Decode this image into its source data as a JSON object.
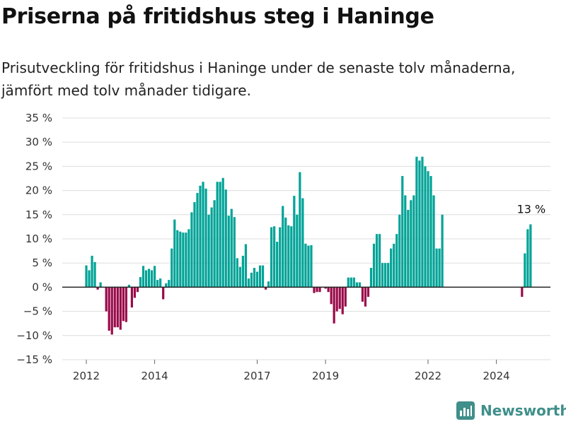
{
  "title": "Priserna på fritidshus steg i Haninge",
  "subtitle": "Prisutveckling för fritidshus i Haninge under de senaste tolv månaderna, jämfört med tolv månader tidigare.",
  "brand": "Newsworthy",
  "colors": {
    "positive": "#00a397",
    "negative": "#990b4a",
    "grid": "#dddddd",
    "axis": "#222222",
    "brand": "#3f8f8a"
  },
  "chart_data": {
    "type": "bar",
    "ylim": [
      -15,
      35
    ],
    "y_ticks": [
      35,
      30,
      25,
      20,
      15,
      10,
      5,
      0,
      -5,
      -10,
      -15
    ],
    "y_tick_labels": [
      "35 %",
      "30 %",
      "25 %",
      "20 %",
      "15 %",
      "10 %",
      "5 %",
      "0 %",
      "−5 %",
      "−10 %",
      "−15 %"
    ],
    "x_ticks": [
      {
        "label": "2012",
        "x": "2012-01"
      },
      {
        "label": "2014",
        "x": "2014-01"
      },
      {
        "label": "2017",
        "x": "2017-01"
      },
      {
        "label": "2019",
        "x": "2019-01"
      },
      {
        "label": "2022",
        "x": "2022-01"
      },
      {
        "label": "2024",
        "x": "2024-01"
      }
    ],
    "annotation": {
      "label": "13 %",
      "x": "2025-01",
      "y": 13
    },
    "series": [
      {
        "values": [
          {
            "x": "2012-01",
            "y": 4.5
          },
          {
            "x": "2012-02",
            "y": 3.5
          },
          {
            "x": "2012-03",
            "y": 6.5
          },
          {
            "x": "2012-04",
            "y": 5.2
          },
          {
            "x": "2012-05",
            "y": -0.5
          },
          {
            "x": "2012-06",
            "y": 1
          },
          {
            "x": "2012-07",
            "y": 0
          },
          {
            "x": "2012-08",
            "y": -5
          },
          {
            "x": "2012-09",
            "y": -9
          },
          {
            "x": "2012-10",
            "y": -9.8
          },
          {
            "x": "2012-11",
            "y": -8.3
          },
          {
            "x": "2012-12",
            "y": -8.3
          },
          {
            "x": "2013-01",
            "y": -8.8
          },
          {
            "x": "2013-02",
            "y": -7
          },
          {
            "x": "2013-03",
            "y": -7.2
          },
          {
            "x": "2013-04",
            "y": 0.5
          },
          {
            "x": "2013-05",
            "y": -4.2
          },
          {
            "x": "2013-06",
            "y": -2.2
          },
          {
            "x": "2013-07",
            "y": -1
          },
          {
            "x": "2013-08",
            "y": 2.1
          },
          {
            "x": "2013-09",
            "y": 4.4
          },
          {
            "x": "2013-10",
            "y": 3.5
          },
          {
            "x": "2013-11",
            "y": 3.8
          },
          {
            "x": "2013-12",
            "y": 3.5
          },
          {
            "x": "2014-01",
            "y": 4.4
          },
          {
            "x": "2014-02",
            "y": 1.5
          },
          {
            "x": "2014-03",
            "y": 1.8
          },
          {
            "x": "2014-04",
            "y": -2.5
          },
          {
            "x": "2014-05",
            "y": 0.8
          },
          {
            "x": "2014-06",
            "y": 1.5
          },
          {
            "x": "2014-07",
            "y": 8
          },
          {
            "x": "2014-08",
            "y": 14
          },
          {
            "x": "2014-09",
            "y": 11.8
          },
          {
            "x": "2014-10",
            "y": 11.5
          },
          {
            "x": "2014-11",
            "y": 11.3
          },
          {
            "x": "2014-12",
            "y": 11.3
          },
          {
            "x": "2015-01",
            "y": 12
          },
          {
            "x": "2015-02",
            "y": 15.5
          },
          {
            "x": "2015-03",
            "y": 17.6
          },
          {
            "x": "2015-04",
            "y": 19.5
          },
          {
            "x": "2015-05",
            "y": 21
          },
          {
            "x": "2015-06",
            "y": 21.8
          },
          {
            "x": "2015-07",
            "y": 20.4
          },
          {
            "x": "2015-08",
            "y": 15
          },
          {
            "x": "2015-09",
            "y": 16.5
          },
          {
            "x": "2015-10",
            "y": 18
          },
          {
            "x": "2015-11",
            "y": 21.8
          },
          {
            "x": "2015-12",
            "y": 21.8
          },
          {
            "x": "2016-01",
            "y": 22.6
          },
          {
            "x": "2016-02",
            "y": 20.2
          },
          {
            "x": "2016-03",
            "y": 14.8
          },
          {
            "x": "2016-04",
            "y": 16.2
          },
          {
            "x": "2016-05",
            "y": 14.5
          },
          {
            "x": "2016-06",
            "y": 6
          },
          {
            "x": "2016-07",
            "y": 4.2
          },
          {
            "x": "2016-08",
            "y": 6.5
          },
          {
            "x": "2016-09",
            "y": 8.9
          },
          {
            "x": "2016-10",
            "y": 1.8
          },
          {
            "x": "2016-11",
            "y": 3
          },
          {
            "x": "2016-12",
            "y": 4
          },
          {
            "x": "2017-01",
            "y": 3.2
          },
          {
            "x": "2017-02",
            "y": 4.5
          },
          {
            "x": "2017-03",
            "y": 4.5
          },
          {
            "x": "2017-04",
            "y": -0.5
          },
          {
            "x": "2017-05",
            "y": 1.2
          },
          {
            "x": "2017-06",
            "y": 12.4
          },
          {
            "x": "2017-07",
            "y": 12.6
          },
          {
            "x": "2017-08",
            "y": 9.4
          },
          {
            "x": "2017-09",
            "y": 12.4
          },
          {
            "x": "2017-10",
            "y": 16.8
          },
          {
            "x": "2017-11",
            "y": 14.4
          },
          {
            "x": "2017-12",
            "y": 12.8
          },
          {
            "x": "2018-01",
            "y": 12.6
          },
          {
            "x": "2018-02",
            "y": 18.9
          },
          {
            "x": "2018-03",
            "y": 15
          },
          {
            "x": "2018-04",
            "y": 23.8
          },
          {
            "x": "2018-05",
            "y": 18.4
          },
          {
            "x": "2018-06",
            "y": 9
          },
          {
            "x": "2018-07",
            "y": 8.6
          },
          {
            "x": "2018-08",
            "y": 8.7
          },
          {
            "x": "2018-09",
            "y": -1.2
          },
          {
            "x": "2018-10",
            "y": -1
          },
          {
            "x": "2018-11",
            "y": -1
          },
          {
            "x": "2018-12",
            "y": 0
          },
          {
            "x": "2019-01",
            "y": -0.3
          },
          {
            "x": "2019-02",
            "y": -1
          },
          {
            "x": "2019-03",
            "y": -3.5
          },
          {
            "x": "2019-04",
            "y": -7.5
          },
          {
            "x": "2019-05",
            "y": -5
          },
          {
            "x": "2019-06",
            "y": -4.5
          },
          {
            "x": "2019-07",
            "y": -5.6
          },
          {
            "x": "2019-08",
            "y": -4
          },
          {
            "x": "2019-09",
            "y": 2
          },
          {
            "x": "2019-10",
            "y": 2
          },
          {
            "x": "2019-11",
            "y": 2
          },
          {
            "x": "2019-12",
            "y": 1
          },
          {
            "x": "2020-01",
            "y": 1
          },
          {
            "x": "2020-02",
            "y": -3
          },
          {
            "x": "2020-03",
            "y": -4
          },
          {
            "x": "2020-04",
            "y": -2
          },
          {
            "x": "2020-05",
            "y": 4
          },
          {
            "x": "2020-06",
            "y": 9
          },
          {
            "x": "2020-07",
            "y": 11
          },
          {
            "x": "2020-08",
            "y": 11
          },
          {
            "x": "2020-09",
            "y": 5
          },
          {
            "x": "2020-10",
            "y": 5
          },
          {
            "x": "2020-11",
            "y": 5
          },
          {
            "x": "2020-12",
            "y": 8
          },
          {
            "x": "2021-01",
            "y": 9
          },
          {
            "x": "2021-02",
            "y": 11
          },
          {
            "x": "2021-03",
            "y": 15
          },
          {
            "x": "2021-04",
            "y": 23
          },
          {
            "x": "2021-05",
            "y": 19
          },
          {
            "x": "2021-06",
            "y": 16
          },
          {
            "x": "2021-07",
            "y": 18
          },
          {
            "x": "2021-08",
            "y": 19
          },
          {
            "x": "2021-09",
            "y": 27
          },
          {
            "x": "2021-10",
            "y": 26.2
          },
          {
            "x": "2021-11",
            "y": 27
          },
          {
            "x": "2021-12",
            "y": 25
          },
          {
            "x": "2022-01",
            "y": 24
          },
          {
            "x": "2022-02",
            "y": 23
          },
          {
            "x": "2022-03",
            "y": 19
          },
          {
            "x": "2022-04",
            "y": 8
          },
          {
            "x": "2022-05",
            "y": 8
          },
          {
            "x": "2022-06",
            "y": 15
          },
          {
            "x": "2024-10",
            "y": -2
          },
          {
            "x": "2024-11",
            "y": 7
          },
          {
            "x": "2024-12",
            "y": 12
          },
          {
            "x": "2025-01",
            "y": 13
          }
        ]
      }
    ]
  }
}
